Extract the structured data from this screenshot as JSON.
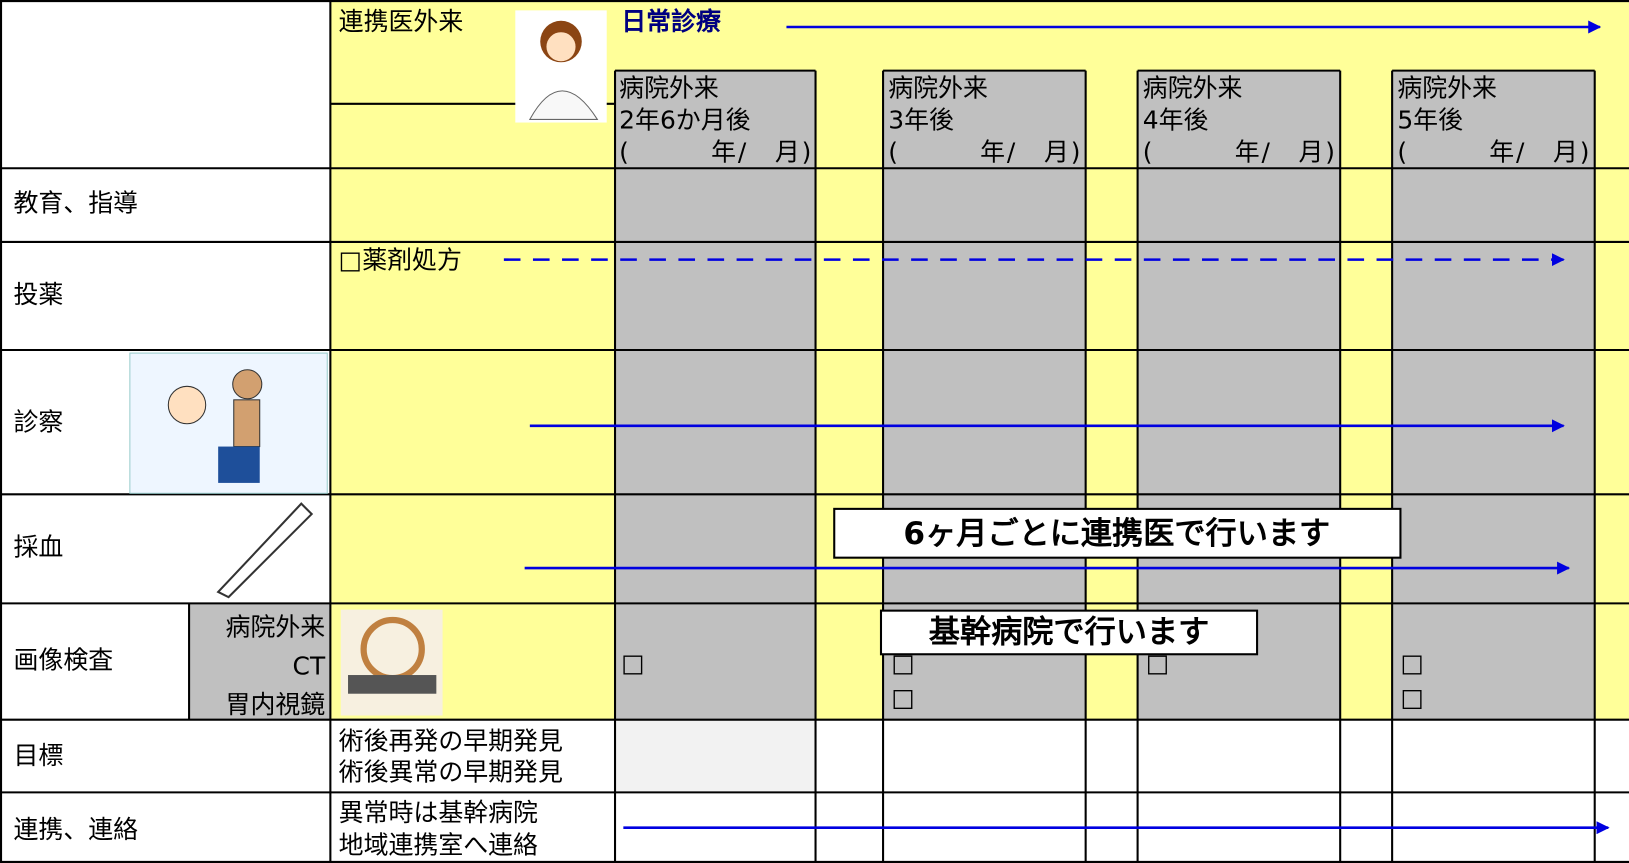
{
  "header": {
    "clinic": "連携医外来",
    "routine": "日常診療"
  },
  "visits": [
    {
      "place": "病院外来",
      "timing": "2年6か月後",
      "date": "(　　　年/　月)"
    },
    {
      "place": "病院外来",
      "timing": "3年後",
      "date": "(　　　年/　月)"
    },
    {
      "place": "病院外来",
      "timing": "4年後",
      "date": "(　　　年/　月)"
    },
    {
      "place": "病院外来",
      "timing": "5年後",
      "date": "(　　　年/　月)"
    }
  ],
  "rows": {
    "education": "教育、指導",
    "medication": "投薬",
    "examination": "診察",
    "blood": "採血",
    "imaging": "画像検査",
    "goal": "目標",
    "liaison": "連携、連絡"
  },
  "medication_item": "□薬剤処方",
  "banners": {
    "clinic": "6ヶ月ごとに連携医で行います",
    "hospital": "基幹病院で行います"
  },
  "imaging_types": [
    "病院外来",
    "CT",
    "胃内視鏡"
  ],
  "imaging_checks": [
    [
      "□"
    ],
    [
      "□",
      "□"
    ],
    [
      "□"
    ],
    [
      "□",
      "□"
    ]
  ],
  "goal_text": [
    "術後再発の早期発見",
    "術後異常の早期発見"
  ],
  "liaison_text": [
    "異常時は基幹病院",
    "地域連携室へ連絡"
  ]
}
